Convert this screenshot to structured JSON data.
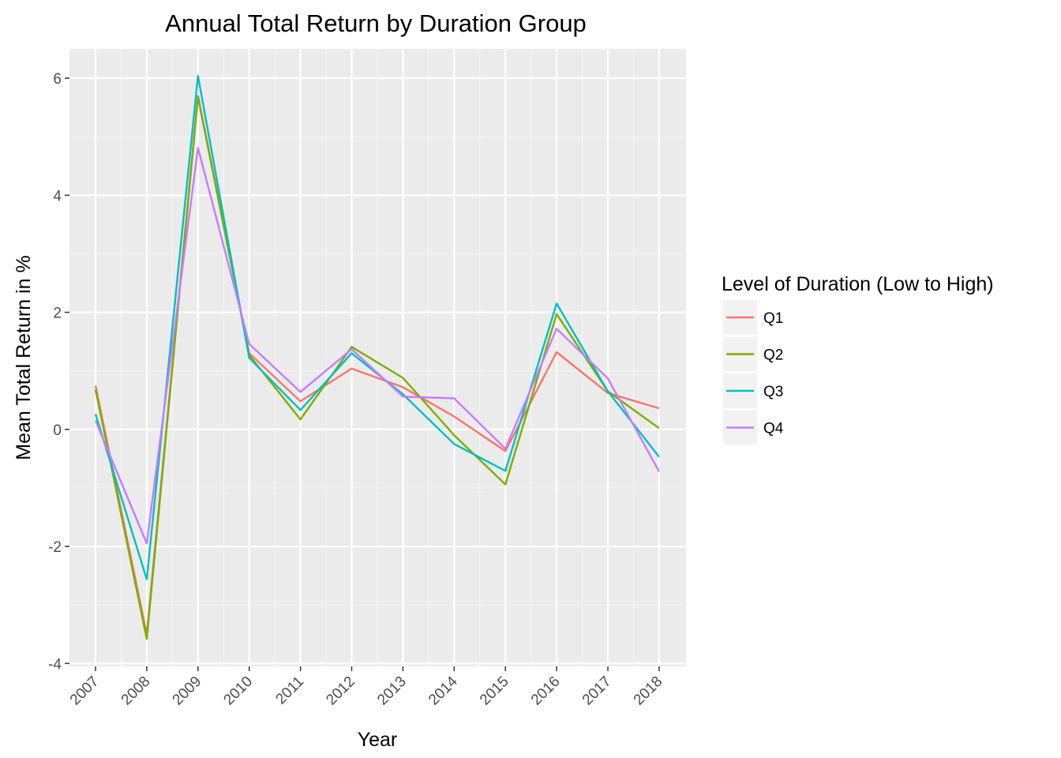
{
  "chart_data": {
    "type": "line",
    "title": "Annual Total Return by Duration Group",
    "xlabel": "Year",
    "ylabel": "Mean Total Return in %",
    "categories": [
      "2007",
      "2008",
      "2009",
      "2010",
      "2011",
      "2012",
      "2013",
      "2014",
      "2015",
      "2016",
      "2017",
      "2018"
    ],
    "ylim": [
      -4.05,
      6.5
    ],
    "yticks": [
      -4,
      -2,
      0,
      2,
      4,
      6
    ],
    "yticks_labels": [
      "-4",
      "-2",
      "0",
      "2",
      "4",
      "6"
    ],
    "grid": true,
    "legend": {
      "title": "Level of Duration (Low to High)",
      "position": "right"
    },
    "series": [
      {
        "name": "Q1",
        "color": "#F8766D",
        "values": [
          0.75,
          -3.5,
          5.7,
          1.3,
          0.48,
          1.04,
          0.72,
          0.22,
          -0.37,
          1.32,
          0.62,
          0.36
        ]
      },
      {
        "name": "Q2",
        "color": "#7CAE00",
        "values": [
          0.68,
          -3.58,
          5.68,
          1.27,
          0.17,
          1.41,
          0.88,
          -0.1,
          -0.94,
          1.97,
          0.65,
          0.02
        ]
      },
      {
        "name": "Q3",
        "color": "#00BFC4",
        "values": [
          0.26,
          -2.56,
          6.04,
          1.22,
          0.33,
          1.3,
          0.6,
          -0.25,
          -0.71,
          2.15,
          0.65,
          -0.47
        ]
      },
      {
        "name": "Q4",
        "color": "#C77CFF",
        "values": [
          0.15,
          -1.95,
          4.81,
          1.46,
          0.64,
          1.37,
          0.56,
          0.53,
          -0.33,
          1.72,
          0.87,
          -0.72
        ]
      }
    ]
  }
}
